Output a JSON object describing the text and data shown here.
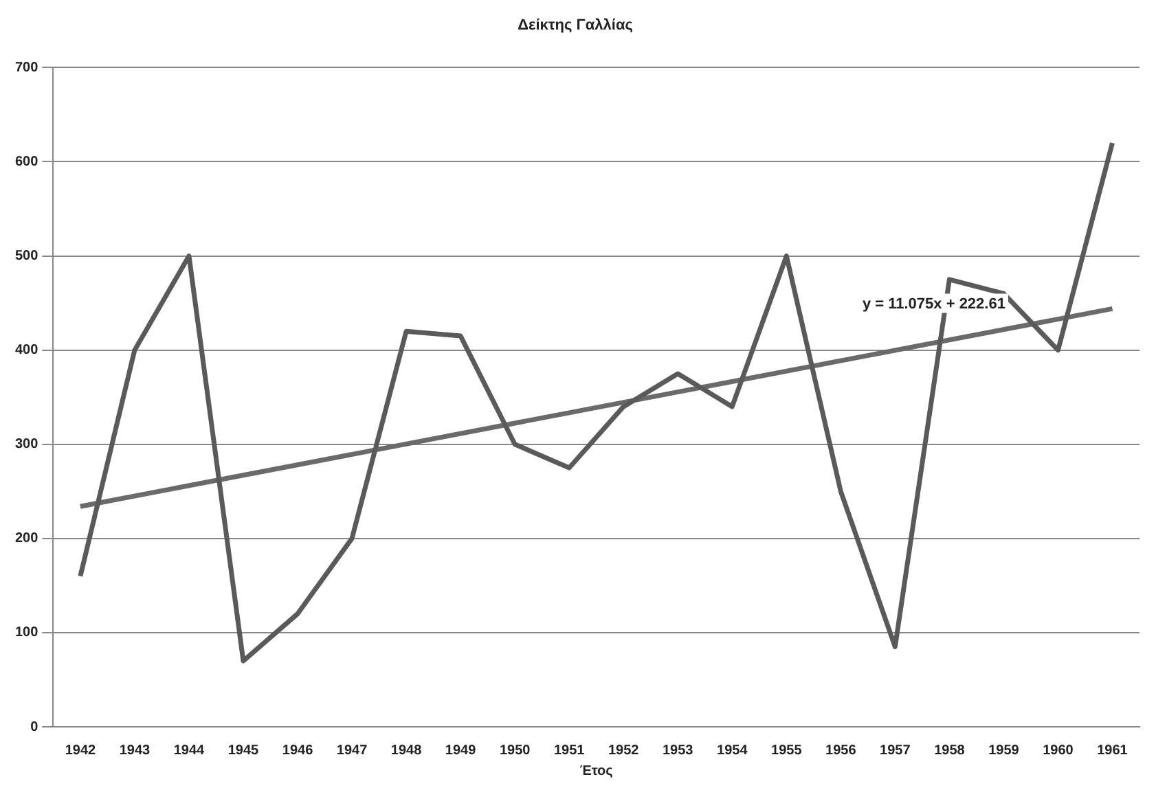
{
  "chart_data": {
    "type": "line",
    "title": "Δείκτης Γαλλίας",
    "xlabel": "Έτος",
    "categories": [
      "1942",
      "1943",
      "1944",
      "1945",
      "1946",
      "1947",
      "1948",
      "1949",
      "1950",
      "1951",
      "1952",
      "1953",
      "1954",
      "1955",
      "1956",
      "1957",
      "1958",
      "1959",
      "1960",
      "1961"
    ],
    "series": [
      {
        "color": "#5a5a5a",
        "values": [
          160,
          400,
          500,
          70,
          120,
          200,
          420,
          415,
          300,
          275,
          340,
          375,
          340,
          500,
          250,
          85,
          475,
          460,
          400,
          620
        ]
      },
      {
        "type": "line",
        "color": "#6a6a6a",
        "values": [
          234,
          null,
          null,
          null,
          null,
          null,
          null,
          null,
          null,
          null,
          null,
          null,
          null,
          null,
          null,
          null,
          null,
          null,
          null,
          444
        ]
      }
    ],
    "ylim": [
      0,
      700
    ],
    "yticks": [
      0,
      100,
      200,
      300,
      400,
      500,
      600,
      700
    ],
    "grid": "y",
    "legend": false,
    "marker": "none",
    "line_style": "solid",
    "annotations": [
      "y = 11.075x + 222.61"
    ]
  }
}
